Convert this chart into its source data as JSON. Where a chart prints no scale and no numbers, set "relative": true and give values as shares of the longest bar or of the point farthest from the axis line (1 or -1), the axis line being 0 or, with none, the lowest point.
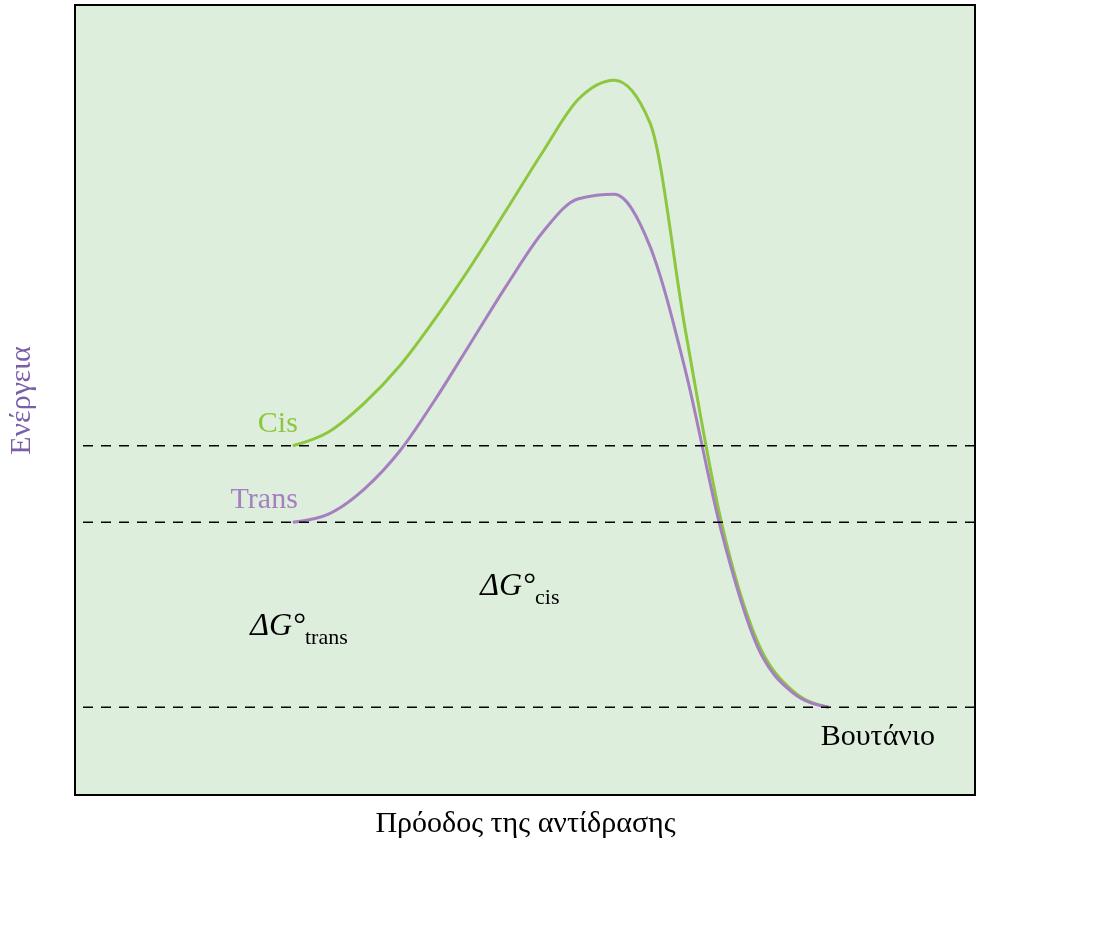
{
  "chart_data": {
    "type": "line",
    "relative": true,
    "xlabel": "Πρόοδος της αντίδρασης",
    "ylabel": "Ενέργεια",
    "categories": [
      null,
      null,
      null,
      null,
      null,
      null,
      null,
      null,
      null,
      null,
      null,
      null,
      null,
      null,
      null,
      null,
      null,
      null,
      null,
      null,
      null,
      null,
      null,
      null,
      null,
      null
    ],
    "series": [
      {
        "name": "Cis",
        "color": "#8dc63f",
        "values": [
          null,
          null,
          null,
          null,
          null,
          null,
          0.417,
          0.439,
          0.485,
          0.545,
          0.621,
          0.705,
          0.795,
          0.886,
          0.97,
          1,
          0.932,
          0.598,
          0.295,
          0.106,
          0.026,
          0,
          null,
          null,
          null,
          null
        ]
      },
      {
        "name": "Trans",
        "color": "#a57fc0",
        "values": [
          null,
          null,
          null,
          null,
          null,
          null,
          0.295,
          0.308,
          0.348,
          0.409,
          0.492,
          0.583,
          0.674,
          0.758,
          0.811,
          0.818,
          0.735,
          0.535,
          0.28,
          0.098,
          0.023,
          0,
          null,
          null,
          null,
          null
        ]
      }
    ],
    "ref_lines": [
      {
        "axis": "y",
        "value": 0.417,
        "color": "#000000",
        "line_style": "dashed"
      },
      {
        "axis": "y",
        "value": 0.295,
        "color": "#000000",
        "line_style": "dashed"
      },
      {
        "axis": "y",
        "value": 0,
        "label": "Βουτάνιο",
        "color": "#000000",
        "line_style": "dashed"
      }
    ],
    "annotations": [
      "ΔG°$_{trans}$",
      "ΔG°$_{cis}$"
    ],
    "grid": false,
    "tick_labels": false,
    "line_style": "solid",
    "marker": "none"
  }
}
